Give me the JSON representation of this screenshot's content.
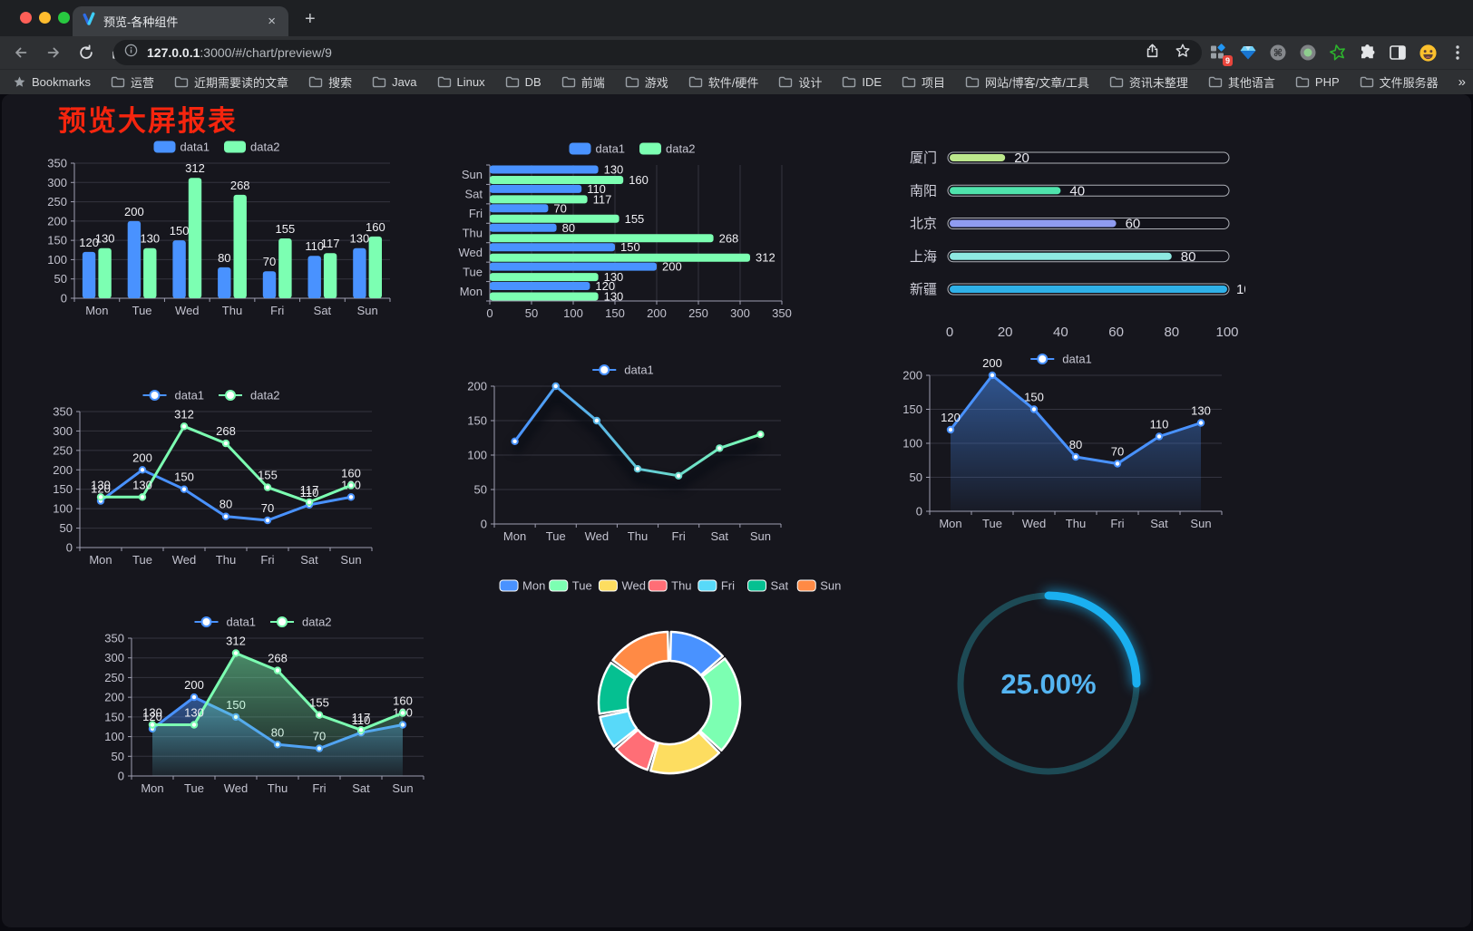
{
  "browser": {
    "tab": {
      "title": "预览-各种组件",
      "close_glyph": "×",
      "new_tab_glyph": "+"
    },
    "url": {
      "host": "127.0.0.1",
      "path": ":3000/#/chart/preview/9"
    },
    "extension_badge": "9",
    "toolbar_icons": [
      "extensions-grid-icon",
      "gem-icon",
      "command-circle-icon",
      "record-circle-icon",
      "green-star-icon",
      "puzzle-icon",
      "sidebar-icon",
      "emoji-icon",
      "menu-kebab-icon"
    ],
    "bookmarks": {
      "first": "Bookmarks",
      "folders": [
        "运营",
        "近期需要读的文章",
        "搜索",
        "Java",
        "Linux",
        "DB",
        "前端",
        "游戏",
        "软件/硬件",
        "设计",
        "IDE",
        "项目",
        "网站/博客/文章/工具",
        "资讯未整理",
        "其他语言",
        "PHP",
        "文件服务器"
      ],
      "overflow": "»",
      "other": "其他书签"
    }
  },
  "page": {
    "title": "预览大屏报表",
    "title_color": "#f5250e",
    "background": "#16161d"
  },
  "chart_data": [
    {
      "type": "bar",
      "categories": [
        "Mon",
        "Tue",
        "Wed",
        "Thu",
        "Fri",
        "Sat",
        "Sun"
      ],
      "series": [
        {
          "name": "data1",
          "color": "#4992ff",
          "values": [
            120,
            200,
            150,
            80,
            70,
            110,
            130
          ]
        },
        {
          "name": "data2",
          "color": "#7cffb2",
          "values": [
            130,
            130,
            312,
            268,
            155,
            117,
            160
          ]
        }
      ],
      "ylim": [
        0,
        350
      ],
      "yticks": [
        0,
        50,
        100,
        150,
        200,
        250,
        300,
        350
      ],
      "legend_position": "top",
      "value_labels": true,
      "grid": true
    },
    {
      "type": "bar-horizontal",
      "categories": [
        "Mon",
        "Tue",
        "Wed",
        "Thu",
        "Fri",
        "Sat",
        "Sun"
      ],
      "series": [
        {
          "name": "data1",
          "color": "#4992ff",
          "values": [
            120,
            200,
            150,
            80,
            70,
            110,
            130
          ]
        },
        {
          "name": "data2",
          "color": "#7cffb2",
          "values": [
            130,
            130,
            312,
            268,
            155,
            117,
            160
          ]
        }
      ],
      "xlim": [
        0,
        350
      ],
      "xticks": [
        0,
        50,
        100,
        150,
        200,
        250,
        300,
        350
      ],
      "legend_position": "top",
      "value_labels": true,
      "grid": true
    },
    {
      "type": "progress",
      "categories": [
        "厦门",
        "南阳",
        "北京",
        "上海",
        "新疆"
      ],
      "values": [
        20,
        40,
        60,
        80,
        100
      ],
      "colors": [
        "#bce78c",
        "#4fe3ac",
        "#8f9bf0",
        "#8ee9e2",
        "#2fb1e8"
      ],
      "xlim": [
        0,
        100
      ],
      "xticks": [
        0,
        20,
        40,
        60,
        80,
        100
      ]
    },
    {
      "type": "line",
      "categories": [
        "Mon",
        "Tue",
        "Wed",
        "Thu",
        "Fri",
        "Sat",
        "Sun"
      ],
      "series": [
        {
          "name": "data1",
          "color": "#4992ff",
          "values": [
            120,
            200,
            150,
            80,
            70,
            110,
            130
          ]
        },
        {
          "name": "data2",
          "color": "#7cffb2",
          "values": [
            130,
            130,
            312,
            268,
            155,
            117,
            160
          ]
        }
      ],
      "ylim": [
        0,
        350
      ],
      "yticks": [
        0,
        50,
        100,
        150,
        200,
        250,
        300,
        350
      ],
      "legend_position": "top",
      "value_labels": true,
      "grid": true
    },
    {
      "type": "line",
      "categories": [
        "Mon",
        "Tue",
        "Wed",
        "Thu",
        "Fri",
        "Sat",
        "Sun"
      ],
      "series": [
        {
          "name": "data1",
          "color_gradient": [
            "#4992ff",
            "#7cffb2"
          ],
          "values": [
            120,
            200,
            150,
            80,
            70,
            110,
            130
          ]
        }
      ],
      "ylim": [
        0,
        200
      ],
      "yticks": [
        0,
        50,
        100,
        150,
        200
      ],
      "legend_position": "top",
      "value_labels": false,
      "shadow": true,
      "grid": true
    },
    {
      "type": "line",
      "categories": [
        "Mon",
        "Tue",
        "Wed",
        "Thu",
        "Fri",
        "Sat",
        "Sun"
      ],
      "series": [
        {
          "name": "data1",
          "color": "#4992ff",
          "values": [
            120,
            200,
            150,
            80,
            70,
            110,
            130
          ]
        }
      ],
      "ylim": [
        0,
        200
      ],
      "yticks": [
        0,
        50,
        100,
        150,
        200
      ],
      "legend_position": "top",
      "value_labels": true,
      "area": true,
      "grid": true
    },
    {
      "type": "line",
      "categories": [
        "Mon",
        "Tue",
        "Wed",
        "Thu",
        "Fri",
        "Sat",
        "Sun"
      ],
      "series": [
        {
          "name": "data1",
          "color": "#4992ff",
          "values": [
            120,
            200,
            150,
            80,
            70,
            110,
            130
          ]
        },
        {
          "name": "data2",
          "color": "#7cffb2",
          "values": [
            130,
            130,
            312,
            268,
            155,
            117,
            160
          ]
        }
      ],
      "ylim": [
        0,
        350
      ],
      "yticks": [
        0,
        50,
        100,
        150,
        200,
        250,
        300,
        350
      ],
      "legend_position": "top",
      "value_labels": true,
      "area": true,
      "grid": true
    },
    {
      "type": "pie",
      "categories": [
        "Mon",
        "Tue",
        "Wed",
        "Thu",
        "Fri",
        "Sat",
        "Sun"
      ],
      "values": [
        120,
        200,
        150,
        80,
        70,
        110,
        130
      ],
      "colors": [
        "#4992ff",
        "#7cffb2",
        "#fddd60",
        "#ff6e76",
        "#58d9f9",
        "#05c091",
        "#ff8a45"
      ],
      "inner_radius_ratio": 0.59,
      "legend_position": "top",
      "border_color": "#ffffff"
    },
    {
      "type": "gauge",
      "value": 25,
      "max": 100,
      "label": "25.00%",
      "progress_color": "#1ab0f0",
      "track_color": "#1d4a55",
      "text_color": "#54b4f1"
    }
  ]
}
